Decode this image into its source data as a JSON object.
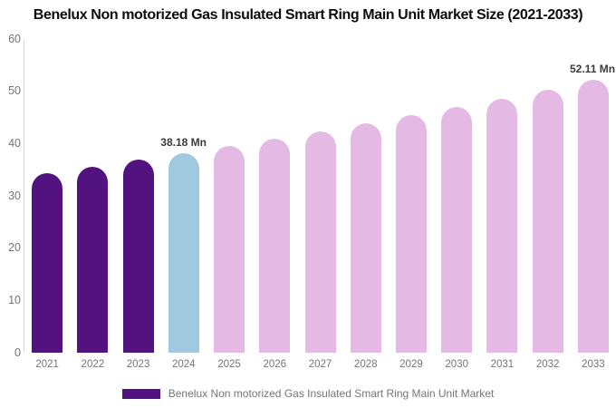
{
  "chart_data": {
    "type": "bar",
    "title": "Benelux Non motorized Gas Insulated Smart Ring Main Unit Market Size (2021-2033)",
    "categories": [
      "2021",
      "2022",
      "2023",
      "2024",
      "2025",
      "2026",
      "2027",
      "2028",
      "2029",
      "2030",
      "2031",
      "2032",
      "2033"
    ],
    "values": [
      34.4,
      35.6,
      36.9,
      38.18,
      39.5,
      40.9,
      42.3,
      43.8,
      45.4,
      47.0,
      48.6,
      50.3,
      52.11
    ],
    "unit": "Mn",
    "xlabel": "",
    "ylabel": "",
    "ylim": [
      0,
      60
    ],
    "yticks": [
      0,
      10,
      20,
      30,
      40,
      50,
      60
    ],
    "grid": false,
    "bar_roles": [
      "historical",
      "historical",
      "historical",
      "current",
      "forecast",
      "forecast",
      "forecast",
      "forecast",
      "forecast",
      "forecast",
      "forecast",
      "forecast",
      "forecast"
    ],
    "colors": {
      "historical": "#521380",
      "current": "#A0C9DF",
      "forecast": "#E4BAE5"
    },
    "annotations": [
      {
        "category": "2024",
        "text": "38.18 Mn"
      },
      {
        "category": "2033",
        "text": "52.11 Mn"
      }
    ],
    "legend": [
      {
        "label": "Benelux Non motorized Gas Insulated Smart Ring Main Unit Market",
        "color": "#521380"
      }
    ],
    "legend_position": "bottom"
  }
}
